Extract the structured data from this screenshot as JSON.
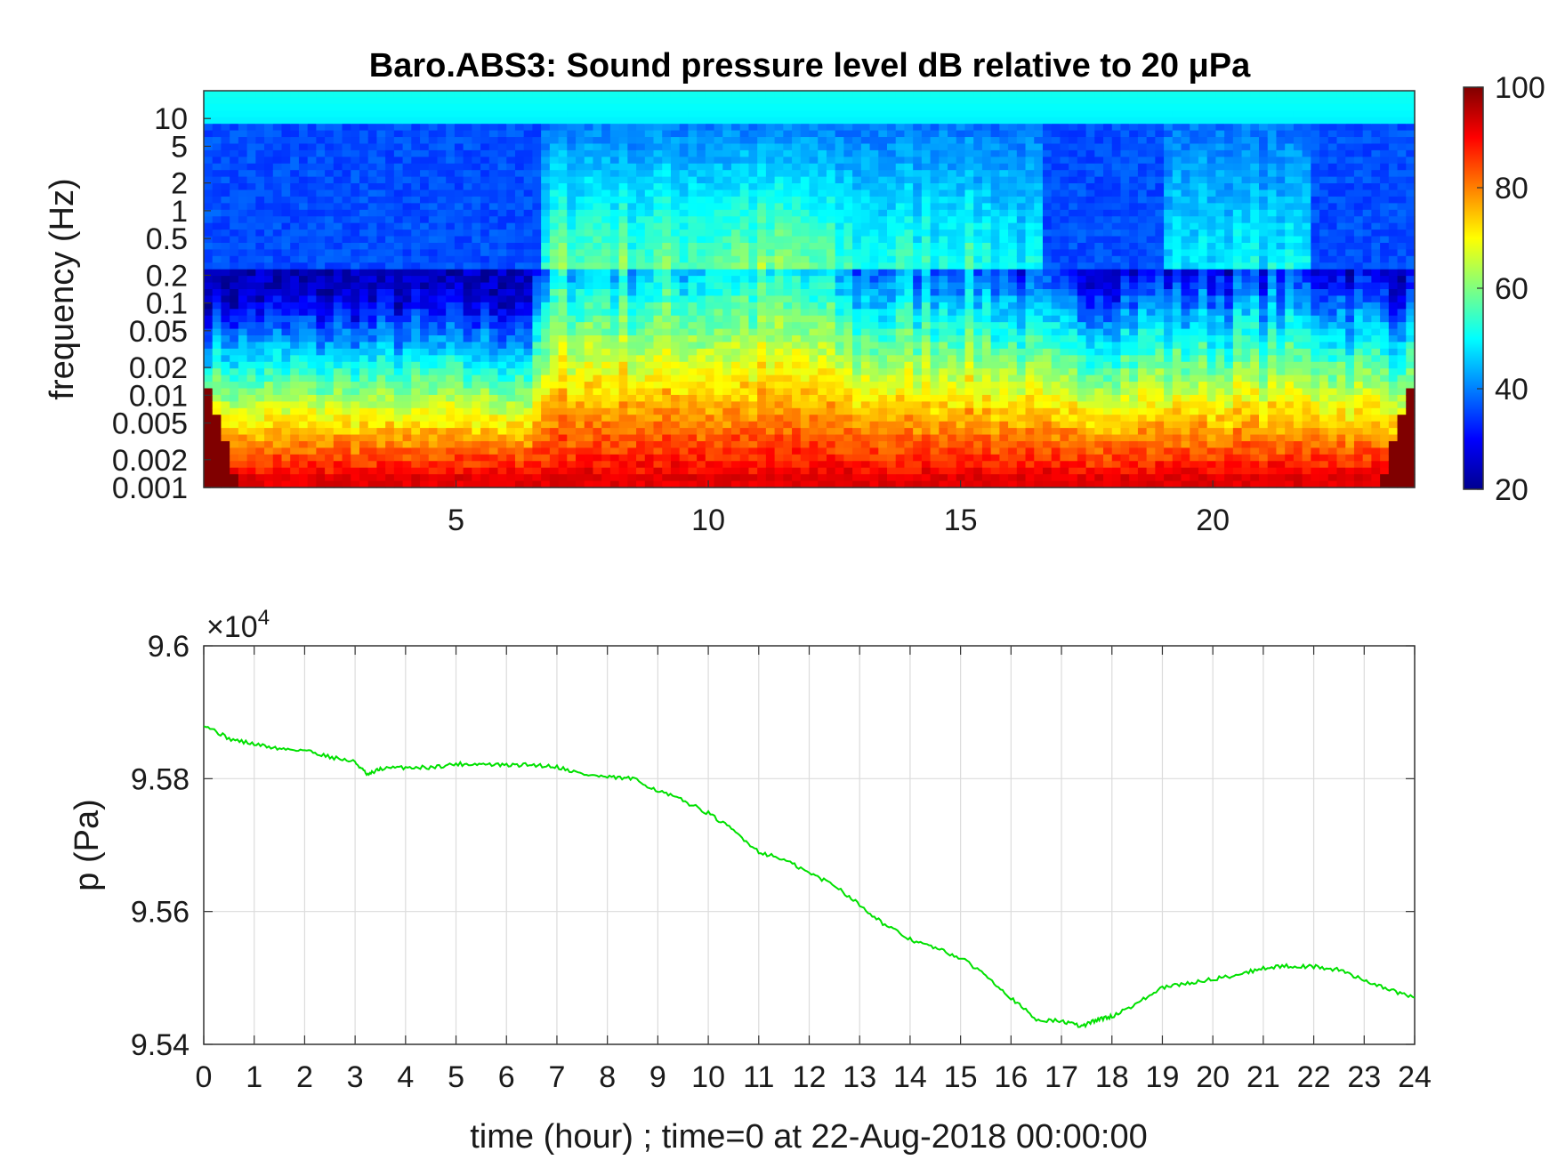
{
  "chart_data": [
    {
      "type": "heatmap",
      "title": "Baro.ABS3: Sound pressure level dB relative to 20 μPa",
      "xlabel": "",
      "ylabel": "frequency (Hz)",
      "y_scale": "log",
      "xlim": [
        0,
        24
      ],
      "ylim": [
        0.001,
        20
      ],
      "x_ticks": [
        "5",
        "10",
        "15",
        "20"
      ],
      "x_tick_values": [
        5,
        10,
        15,
        20
      ],
      "y_ticks": [
        "0.001",
        "0.002",
        "0.005",
        "0.01",
        "0.02",
        "0.05",
        "0.1",
        "0.2",
        "0.5",
        "1",
        "2",
        "5",
        "10"
      ],
      "y_tick_values": [
        0.001,
        0.002,
        0.005,
        0.01,
        0.02,
        0.05,
        0.1,
        0.2,
        0.5,
        1,
        2,
        5,
        10
      ],
      "colorbar": {
        "ticks": [
          "20",
          "40",
          "60",
          "80",
          "100"
        ],
        "tick_values": [
          20,
          40,
          60,
          80,
          100
        ],
        "clim": [
          20,
          100
        ],
        "colormap": "jet"
      },
      "activity_profile_hours": [
        0,
        6.5,
        7,
        9,
        11,
        12,
        13,
        15,
        17,
        19,
        21,
        24
      ],
      "activity_profile_level": [
        0.3,
        0.3,
        0.95,
        0.9,
        1.0,
        0.95,
        0.65,
        0.75,
        0.45,
        0.5,
        0.55,
        0.4
      ]
    },
    {
      "type": "line",
      "xlabel": "time (hour) ; time=0 at 22-Aug-2018 00:00:00",
      "ylabel": "p (Pa)",
      "y_multiplier": "×10",
      "y_multiplier_exp": "4",
      "xlim": [
        0,
        24
      ],
      "ylim": [
        9.54,
        9.6
      ],
      "grid": true,
      "x_ticks": [
        "0",
        "1",
        "2",
        "3",
        "4",
        "5",
        "6",
        "7",
        "8",
        "9",
        "10",
        "11",
        "12",
        "13",
        "14",
        "15",
        "16",
        "17",
        "18",
        "19",
        "20",
        "21",
        "22",
        "23",
        "24"
      ],
      "y_ticks": [
        "9.54",
        "9.56",
        "9.58",
        "9.6"
      ],
      "y_tick_values": [
        9.54,
        9.56,
        9.58,
        9.6
      ],
      "series": [
        {
          "color": "#00e000",
          "x": [
            0,
            0.5,
            1,
            1.5,
            2,
            2.5,
            3,
            3.25,
            3.5,
            4,
            4.5,
            5,
            5.5,
            6,
            6.5,
            7,
            7.5,
            8,
            8.5,
            9,
            9.5,
            10,
            10.5,
            11,
            11.5,
            12,
            12.5,
            13,
            13.5,
            14,
            14.5,
            15,
            15.5,
            16,
            16.5,
            17,
            17.4,
            17.7,
            18,
            18.5,
            19,
            19.5,
            20,
            20.5,
            21,
            21.5,
            22,
            22.5,
            23,
            23.5,
            24
          ],
          "y": [
            9.5882,
            9.586,
            9.5852,
            9.5845,
            9.5843,
            9.5833,
            9.5825,
            9.5805,
            9.5815,
            9.5817,
            9.5817,
            9.5822,
            9.5822,
            9.582,
            9.5821,
            9.5818,
            9.5807,
            9.5802,
            9.58,
            9.5782,
            9.5767,
            9.5748,
            9.5722,
            9.569,
            9.5678,
            9.5658,
            9.564,
            9.561,
            9.558,
            9.5558,
            9.5545,
            9.553,
            9.5505,
            9.547,
            9.5437,
            9.5435,
            9.5427,
            9.5437,
            9.5442,
            9.5462,
            9.5485,
            9.5492,
            9.5498,
            9.5505,
            9.5515,
            9.5518,
            9.5517,
            9.5512,
            9.5497,
            9.5482,
            9.547
          ]
        }
      ]
    }
  ]
}
